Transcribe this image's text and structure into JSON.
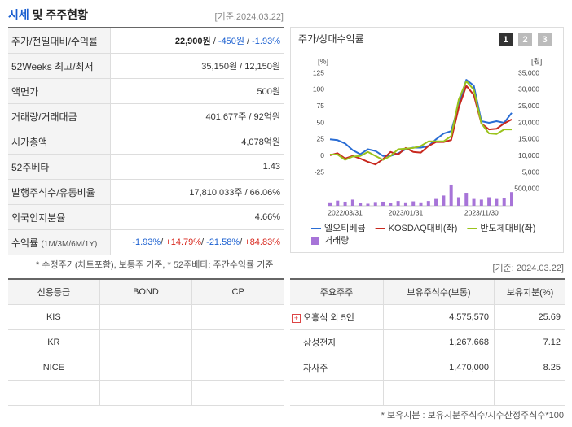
{
  "header": {
    "title_highlight": "시세",
    "title_rest": "및 주주현황",
    "date": "[기준:2024.03.22]"
  },
  "summary": {
    "rows": [
      {
        "label": "주가/전일대비/수익률",
        "parts": [
          {
            "text": "22,900원",
            "tone": "bold"
          },
          {
            "text": " / ",
            "tone": ""
          },
          {
            "text": "-450원",
            "tone": "neg"
          },
          {
            "text": " / ",
            "tone": ""
          },
          {
            "text": "-1.93%",
            "tone": "neg"
          }
        ]
      },
      {
        "label": "52Weeks 최고/최저",
        "parts": [
          {
            "text": "35,150원 / 12,150원",
            "tone": ""
          }
        ]
      },
      {
        "label": "액면가",
        "parts": [
          {
            "text": "500원",
            "tone": ""
          }
        ]
      },
      {
        "label": "거래량/거래대금",
        "parts": [
          {
            "text": "401,677주 / 92억원",
            "tone": ""
          }
        ]
      },
      {
        "label": "시가총액",
        "parts": [
          {
            "text": "4,078억원",
            "tone": ""
          }
        ]
      },
      {
        "label": "52주베타",
        "parts": [
          {
            "text": "1.43",
            "tone": ""
          }
        ]
      },
      {
        "label": "발행주식수/유동비율",
        "parts": [
          {
            "text": "17,810,033주 / 66.06%",
            "tone": ""
          }
        ]
      },
      {
        "label": "외국인지분율",
        "parts": [
          {
            "text": "4.66%",
            "tone": ""
          }
        ]
      },
      {
        "label": "수익률",
        "sub": "(1M/3M/6M/1Y)",
        "parts": [
          {
            "text": "-1.93%",
            "tone": "neg"
          },
          {
            "text": "/ ",
            "tone": ""
          },
          {
            "text": "+14.79%",
            "tone": "pos"
          },
          {
            "text": "/ ",
            "tone": ""
          },
          {
            "text": "-21.58%",
            "tone": "neg"
          },
          {
            "text": "/ ",
            "tone": ""
          },
          {
            "text": "+84.83%",
            "tone": "pos"
          }
        ]
      }
    ],
    "note": "* 수정주가(차트포함), 보통주 기준, * 52주베타: 주간수익률 기준"
  },
  "chart_data": {
    "type": "line",
    "title": "주가/상대수익률",
    "buttons": [
      "1",
      "2",
      "3"
    ],
    "ylabel": "[%]",
    "y2label": "[원]",
    "categories": [
      null,
      null,
      "2022/03/31",
      null,
      null,
      null,
      null,
      null,
      null,
      null,
      "2023/01/31",
      null,
      null,
      null,
      null,
      null,
      null,
      null,
      null,
      null,
      "2023/11/30",
      null,
      null,
      null,
      null
    ],
    "ylim": [
      -25,
      125
    ],
    "yticks": [
      -25,
      0,
      25,
      50,
      75,
      100,
      125
    ],
    "y2lim": [
      5000,
      35000
    ],
    "y2ticks": [
      {
        "value": 5000,
        "label": "5,000"
      },
      {
        "value": 10000,
        "label": "10,000"
      },
      {
        "value": 15000,
        "label": "15,000"
      },
      {
        "value": 20000,
        "label": "20,000"
      },
      {
        "value": 25000,
        "label": "25,000"
      },
      {
        "value": 30000,
        "label": "30,000"
      },
      {
        "value": 35000,
        "label": "35,000"
      }
    ],
    "y3lim": [
      0,
      600000
    ],
    "y3ticks": [
      {
        "value": 500000,
        "label": "500,000"
      }
    ],
    "series": [
      {
        "name": "엘오티베큠",
        "color": "#2a6dd4",
        "axis": "y2",
        "values": [
          15000,
          14750,
          13750,
          11750,
          10500,
          12000,
          11500,
          10000,
          10000,
          10750,
          12000,
          12500,
          12500,
          13000,
          15000,
          16750,
          17500,
          25500,
          33000,
          31250,
          20500,
          20000,
          20500,
          20000,
          23000
        ]
      },
      {
        "name": "KOSDAQ대비(좌)",
        "color": "#c8281e",
        "values": [
          1,
          4,
          -4,
          0,
          -4,
          -9,
          -13,
          -5,
          6,
          2,
          12,
          6,
          5,
          15,
          21,
          21,
          24,
          73,
          106,
          92,
          49,
          40,
          41,
          49,
          55
        ]
      },
      {
        "name": "반도체대비(좌)",
        "color": "#9ac31c",
        "values": [
          2,
          2,
          -6,
          -1,
          0,
          6,
          0,
          -6,
          0,
          10,
          11,
          12,
          15,
          22,
          22,
          22,
          30,
          85,
          113,
          100,
          49,
          34,
          33,
          40,
          40
        ]
      },
      {
        "name": "거래량",
        "color": "#a774d8",
        "axis": "y3",
        "values": [
          100000,
          150000,
          120000,
          180000,
          90000,
          60000,
          110000,
          120000,
          80000,
          140000,
          100000,
          130000,
          100000,
          140000,
          200000,
          300000,
          620000,
          250000,
          380000,
          200000,
          180000,
          250000,
          200000,
          230000,
          400000
        ]
      }
    ]
  },
  "chart_date": "[기준: 2024.03.22]",
  "credit": {
    "headers": [
      "신용등급",
      "BOND",
      "CP"
    ],
    "rows": [
      [
        "KIS"
      ],
      [
        "KR"
      ],
      [
        "NICE"
      ]
    ]
  },
  "shareholders": {
    "headers": [
      "주요주주",
      "보유주식수(보통)",
      "보유지분(%)"
    ],
    "rows": [
      [
        "오흥식 외 5인",
        "4,575,570",
        "25.69"
      ],
      [
        "삼성전자",
        "1,267,668",
        "7.12"
      ],
      [
        "자사주",
        "1,470,000",
        "8.25"
      ]
    ],
    "footnote": "* 보유지분 : 보유지분주식수/지수산정주식수*100"
  }
}
